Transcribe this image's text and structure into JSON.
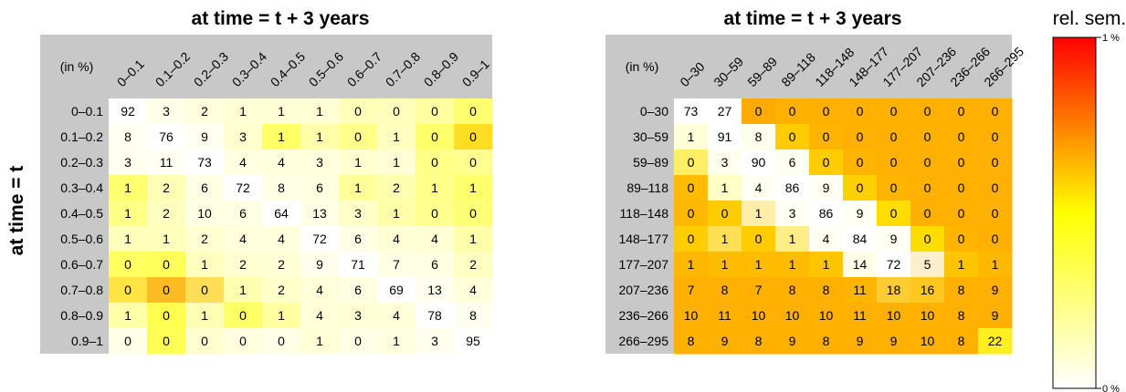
{
  "y_title": "at time = t",
  "legend": {
    "title": "rel. sem.",
    "max_label": "1 %",
    "min_label": "0 %",
    "colors": [
      "#ffffff",
      "#ffff00",
      "#ff0000"
    ]
  },
  "chart_data": [
    {
      "type": "heatmap",
      "title": "at time = t + 3 years",
      "corner_label": "(in %)",
      "ylabel": "at time = t",
      "x_categories": [
        "0–0.1",
        "0.1–0.2",
        "0.2–0.3",
        "0.3–0.4",
        "0.4–0.5",
        "0.5–0.6",
        "0.6–0.7",
        "0.7–0.8",
        "0.8–0.9",
        "0.9–1"
      ],
      "y_categories": [
        "0–0.1",
        "0.1–0.2",
        "0.2–0.3",
        "0.3–0.4",
        "0.4–0.5",
        "0.5–0.6",
        "0.6–0.7",
        "0.7–0.8",
        "0.8–0.9",
        "0.9–1"
      ],
      "values": [
        [
          92,
          3,
          2,
          1,
          1,
          1,
          0,
          0,
          0,
          0
        ],
        [
          8,
          76,
          9,
          3,
          1,
          1,
          0,
          1,
          0,
          0
        ],
        [
          3,
          11,
          73,
          4,
          4,
          3,
          1,
          1,
          0,
          0
        ],
        [
          1,
          2,
          6,
          72,
          8,
          6,
          1,
          2,
          1,
          1
        ],
        [
          1,
          2,
          10,
          6,
          64,
          13,
          3,
          1,
          0,
          0
        ],
        [
          1,
          1,
          2,
          4,
          4,
          72,
          6,
          4,
          4,
          1
        ],
        [
          0,
          0,
          1,
          2,
          2,
          9,
          71,
          7,
          6,
          2
        ],
        [
          0,
          0,
          0,
          1,
          2,
          4,
          6,
          69,
          13,
          4
        ],
        [
          1,
          0,
          1,
          0,
          1,
          4,
          3,
          4,
          78,
          8
        ],
        [
          0,
          0,
          0,
          0,
          0,
          1,
          0,
          1,
          3,
          95
        ]
      ],
      "color_scale": "rel. sem. (0 %–1 %)",
      "colors": [
        [
          "#ffffff",
          "#ffffea",
          "#ffffde",
          "#ffffd6",
          "#ffffd6",
          "#ffffd6",
          "#ffffb8",
          "#ffffbb",
          "#ffffa0",
          "#ffff70"
        ],
        [
          "#fffff2",
          "#ffffff",
          "#fffff2",
          "#ffffd0",
          "#ffff66",
          "#ffffaa",
          "#ffff8a",
          "#ffffc0",
          "#ffff6a",
          "#ffdd22"
        ],
        [
          "#fffff0",
          "#fffff6",
          "#ffffff",
          "#ffffe2",
          "#ffffde",
          "#ffffde",
          "#ffffd0",
          "#ffffd6",
          "#ffff88",
          "#ffff90"
        ],
        [
          "#ffff70",
          "#ffffb6",
          "#ffffe6",
          "#ffffff",
          "#ffffe6",
          "#ffffe2",
          "#ffff9a",
          "#ffffb0",
          "#ffff8a",
          "#ffff6e"
        ],
        [
          "#ffff86",
          "#ffffc0",
          "#ffffe4",
          "#ffffe4",
          "#ffffff",
          "#ffffe6",
          "#ffffca",
          "#ffffaa",
          "#ffff90",
          "#ffff76"
        ],
        [
          "#ffffbc",
          "#ffffbc",
          "#ffffd2",
          "#ffffde",
          "#ffffde",
          "#ffffff",
          "#ffffe6",
          "#ffffd6",
          "#ffffd6",
          "#ffffaa"
        ],
        [
          "#ffff62",
          "#ffff5a",
          "#ffffc0",
          "#ffffd2",
          "#ffffd6",
          "#ffffee",
          "#ffffff",
          "#ffffe6",
          "#ffffe4",
          "#ffffc2"
        ],
        [
          "#ffe444",
          "#ffbb22",
          "#ffdd55",
          "#ffffb0",
          "#ffffca",
          "#ffffda",
          "#ffffe2",
          "#ffffff",
          "#fffff0",
          "#ffffda"
        ],
        [
          "#ffffa8",
          "#ffff50",
          "#ffffb4",
          "#ffff66",
          "#ffffa0",
          "#ffffda",
          "#ffffd6",
          "#ffffda",
          "#ffffff",
          "#fffff0"
        ],
        [
          "#ffffe8",
          "#ffff58",
          "#ffffd0",
          "#ffffe0",
          "#ffffe8",
          "#ffffd8",
          "#ffffe6",
          "#ffffe2",
          "#ffffee",
          "#ffffff"
        ]
      ]
    },
    {
      "type": "heatmap",
      "title": "at time = t + 3 years",
      "corner_label": "(in %)",
      "ylabel": "at time = t",
      "x_categories": [
        "0–30",
        "30–59",
        "59–89",
        "89–118",
        "118–148",
        "148–177",
        "177–207",
        "207–236",
        "236–266",
        "266–295"
      ],
      "y_categories": [
        "0–30",
        "30–59",
        "59–89",
        "89–118",
        "118–148",
        "148–177",
        "177–207",
        "207–236",
        "236–266",
        "266–295"
      ],
      "values": [
        [
          73,
          27,
          0,
          0,
          0,
          0,
          0,
          0,
          0,
          0
        ],
        [
          1,
          91,
          8,
          0,
          0,
          0,
          0,
          0,
          0,
          0
        ],
        [
          0,
          3,
          90,
          6,
          0,
          0,
          0,
          0,
          0,
          0
        ],
        [
          0,
          1,
          4,
          86,
          9,
          0,
          0,
          0,
          0,
          0
        ],
        [
          0,
          0,
          1,
          3,
          86,
          9,
          0,
          0,
          0,
          0
        ],
        [
          0,
          1,
          0,
          1,
          4,
          84,
          9,
          0,
          0,
          0
        ],
        [
          1,
          1,
          1,
          1,
          1,
          14,
          72,
          5,
          1,
          1
        ],
        [
          7,
          8,
          7,
          8,
          8,
          11,
          18,
          16,
          8,
          9
        ],
        [
          10,
          11,
          10,
          10,
          10,
          11,
          10,
          10,
          8,
          9
        ],
        [
          8,
          9,
          8,
          9,
          8,
          9,
          9,
          10,
          8,
          22
        ]
      ],
      "color_scale": "rel. sem. (0 %–1 %)",
      "colors": [
        [
          "#ffffff",
          "#ffffff",
          "#ffaa00",
          "#ffb000",
          "#ffb000",
          "#ffb000",
          "#ffb000",
          "#ffb000",
          "#ffb000",
          "#ffb000"
        ],
        [
          "#ffffd8",
          "#ffffff",
          "#ffffee",
          "#ffcc00",
          "#ffb400",
          "#ffb000",
          "#ffb000",
          "#ffb000",
          "#ffb000",
          "#ffb000"
        ],
        [
          "#ffee66",
          "#fffff0",
          "#ffffff",
          "#fffff2",
          "#ffcc00",
          "#ffb400",
          "#ffb000",
          "#ffb000",
          "#ffb000",
          "#ffb000"
        ],
        [
          "#ffbb00",
          "#ffffc6",
          "#fffff4",
          "#ffffff",
          "#fffff4",
          "#ffd000",
          "#ffb400",
          "#ffb000",
          "#ffb000",
          "#ffb000"
        ],
        [
          "#ffb800",
          "#ffcc00",
          "#ffeeaa",
          "#fffff4",
          "#ffffff",
          "#fffff4",
          "#ffdd00",
          "#ffb000",
          "#ffb000",
          "#ffb000"
        ],
        [
          "#ffcc00",
          "#ffe055",
          "#ffcc00",
          "#ffee88",
          "#fffff4",
          "#ffffff",
          "#fffff4",
          "#ffdd00",
          "#ffb400",
          "#ffb000"
        ],
        [
          "#ffb800",
          "#ffbb00",
          "#ffbb00",
          "#ffbb00",
          "#ffc400",
          "#ffffe8",
          "#ffffff",
          "#ffeecc",
          "#ffc400",
          "#ffb800"
        ],
        [
          "#ffb000",
          "#ffb000",
          "#ffb000",
          "#ffb000",
          "#ffb000",
          "#ffb400",
          "#ffcc33",
          "#ffc820",
          "#ffb000",
          "#ffb000"
        ],
        [
          "#ffb000",
          "#ffb000",
          "#ffb000",
          "#ffb000",
          "#ffb000",
          "#ffb000",
          "#ffb000",
          "#ffb000",
          "#ffb000",
          "#ffb000"
        ],
        [
          "#ffb000",
          "#ffb000",
          "#ffb000",
          "#ffb000",
          "#ffb000",
          "#ffb000",
          "#ffb000",
          "#ffb000",
          "#ffb000",
          "#ffee22"
        ]
      ]
    }
  ]
}
